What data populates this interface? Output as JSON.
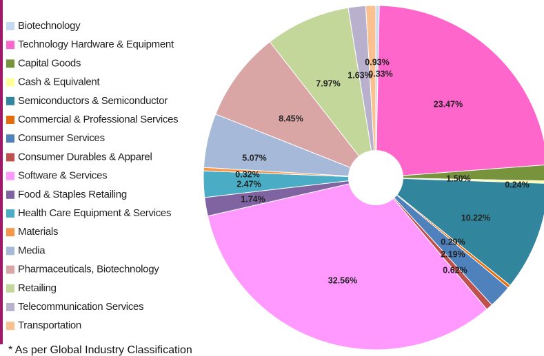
{
  "chart_data": {
    "type": "donut",
    "categories": [
      "Biotechnology",
      "Technology Hardware & Equipment",
      "Capital Goods",
      "Cash & Equivalent",
      "Semiconductors & Semiconductor",
      "Commercial & Professional Services",
      "Consumer Services",
      "Consumer Durables & Apparel",
      "Software & Services",
      "Food & Staples Retailing",
      "Health Care Equipment & Services",
      "Materials",
      "Media",
      "Pharmaceuticals, Biotechnology",
      "Retailing",
      "Telecommunication Services",
      "Transportation"
    ],
    "values": [
      0.33,
      23.47,
      1.5,
      0.24,
      10.22,
      0.29,
      2.19,
      0.62,
      32.56,
      1.74,
      2.47,
      0.32,
      5.07,
      8.45,
      7.97,
      1.63,
      0.93
    ],
    "value_labels": [
      "0.33%",
      "23.47%",
      "1.50%",
      "0.24%",
      "10.22%",
      "0.29%",
      "2.19%",
      "0.62%",
      "32.56%",
      "1.74%",
      "2.47%",
      "0.32%",
      "5.07%",
      "8.45%",
      "7.97%",
      "1.63%",
      "0.93%"
    ],
    "colors": [
      "#c5d9f1",
      "#ff66cc",
      "#77933c",
      "#ffff99",
      "#31859c",
      "#e46c0a",
      "#4f81bd",
      "#c0504d",
      "#ff99ff",
      "#8064a2",
      "#4bacc6",
      "#f79646",
      "#a6b9d9",
      "#d9a5a5",
      "#c4d79b",
      "#b8b0cc",
      "#fac090"
    ],
    "legend": "left",
    "footnote": "* As per Global Industry Classification"
  }
}
